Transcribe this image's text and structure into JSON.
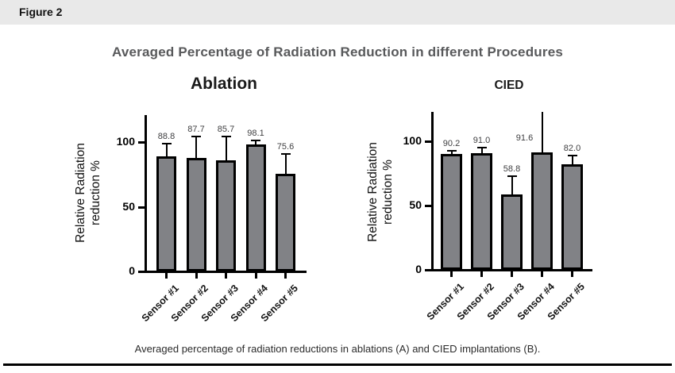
{
  "figure_label": "Figure 2",
  "main_title": "Averaged Percentage of Radiation Reduction in different Procedures",
  "caption": "Averaged percentage of radiation reductions in ablations (A) and CIED implantations (B).",
  "colors": {
    "header_bg": "#e9e9e9",
    "main_title_color": "#58595b",
    "bar_fill": "#818286",
    "bar_border": "#000000",
    "value_label_color": "#404042",
    "axis_color": "#000000",
    "rule_color": "#000000"
  },
  "chart_data": [
    {
      "type": "bar",
      "title": "Ablation",
      "categories": [
        "Sensor #1",
        "Sensor #2",
        "Sensor #3",
        "Sensor #4",
        "Sensor #5"
      ],
      "values": [
        88.8,
        87.7,
        85.7,
        98.1,
        75.6
      ],
      "value_labels": [
        "88.8",
        "87.7",
        "85.7",
        "98.1",
        "75.6"
      ],
      "error_tops": [
        99,
        104,
        104,
        101.5,
        91
      ],
      "error_capped": [
        true,
        true,
        true,
        true,
        true
      ],
      "ylabel": "Relative Radiation\nreduction %",
      "xlabel": "",
      "yticks": [
        0,
        50,
        100
      ],
      "ylim": [
        0,
        121
      ],
      "grid": false,
      "legend": "none"
    },
    {
      "type": "bar",
      "title": "CIED",
      "categories": [
        "Sensor #1",
        "Sensor #2",
        "Sensor #3",
        "Sensor #4",
        "Sensor #5"
      ],
      "values": [
        90.2,
        91.0,
        58.8,
        91.6,
        82.0
      ],
      "value_labels": [
        "90.2",
        "91.0",
        "58.8",
        "91.6",
        "82.0"
      ],
      "error_tops": [
        92.5,
        95,
        73,
        123,
        89
      ],
      "error_capped": [
        true,
        true,
        true,
        false,
        true
      ],
      "ylabel": "Relative Radiation\nreduction %",
      "xlabel": "",
      "yticks": [
        0,
        50,
        100
      ],
      "ylim": [
        0,
        123
      ],
      "grid": false,
      "legend": "none"
    }
  ]
}
